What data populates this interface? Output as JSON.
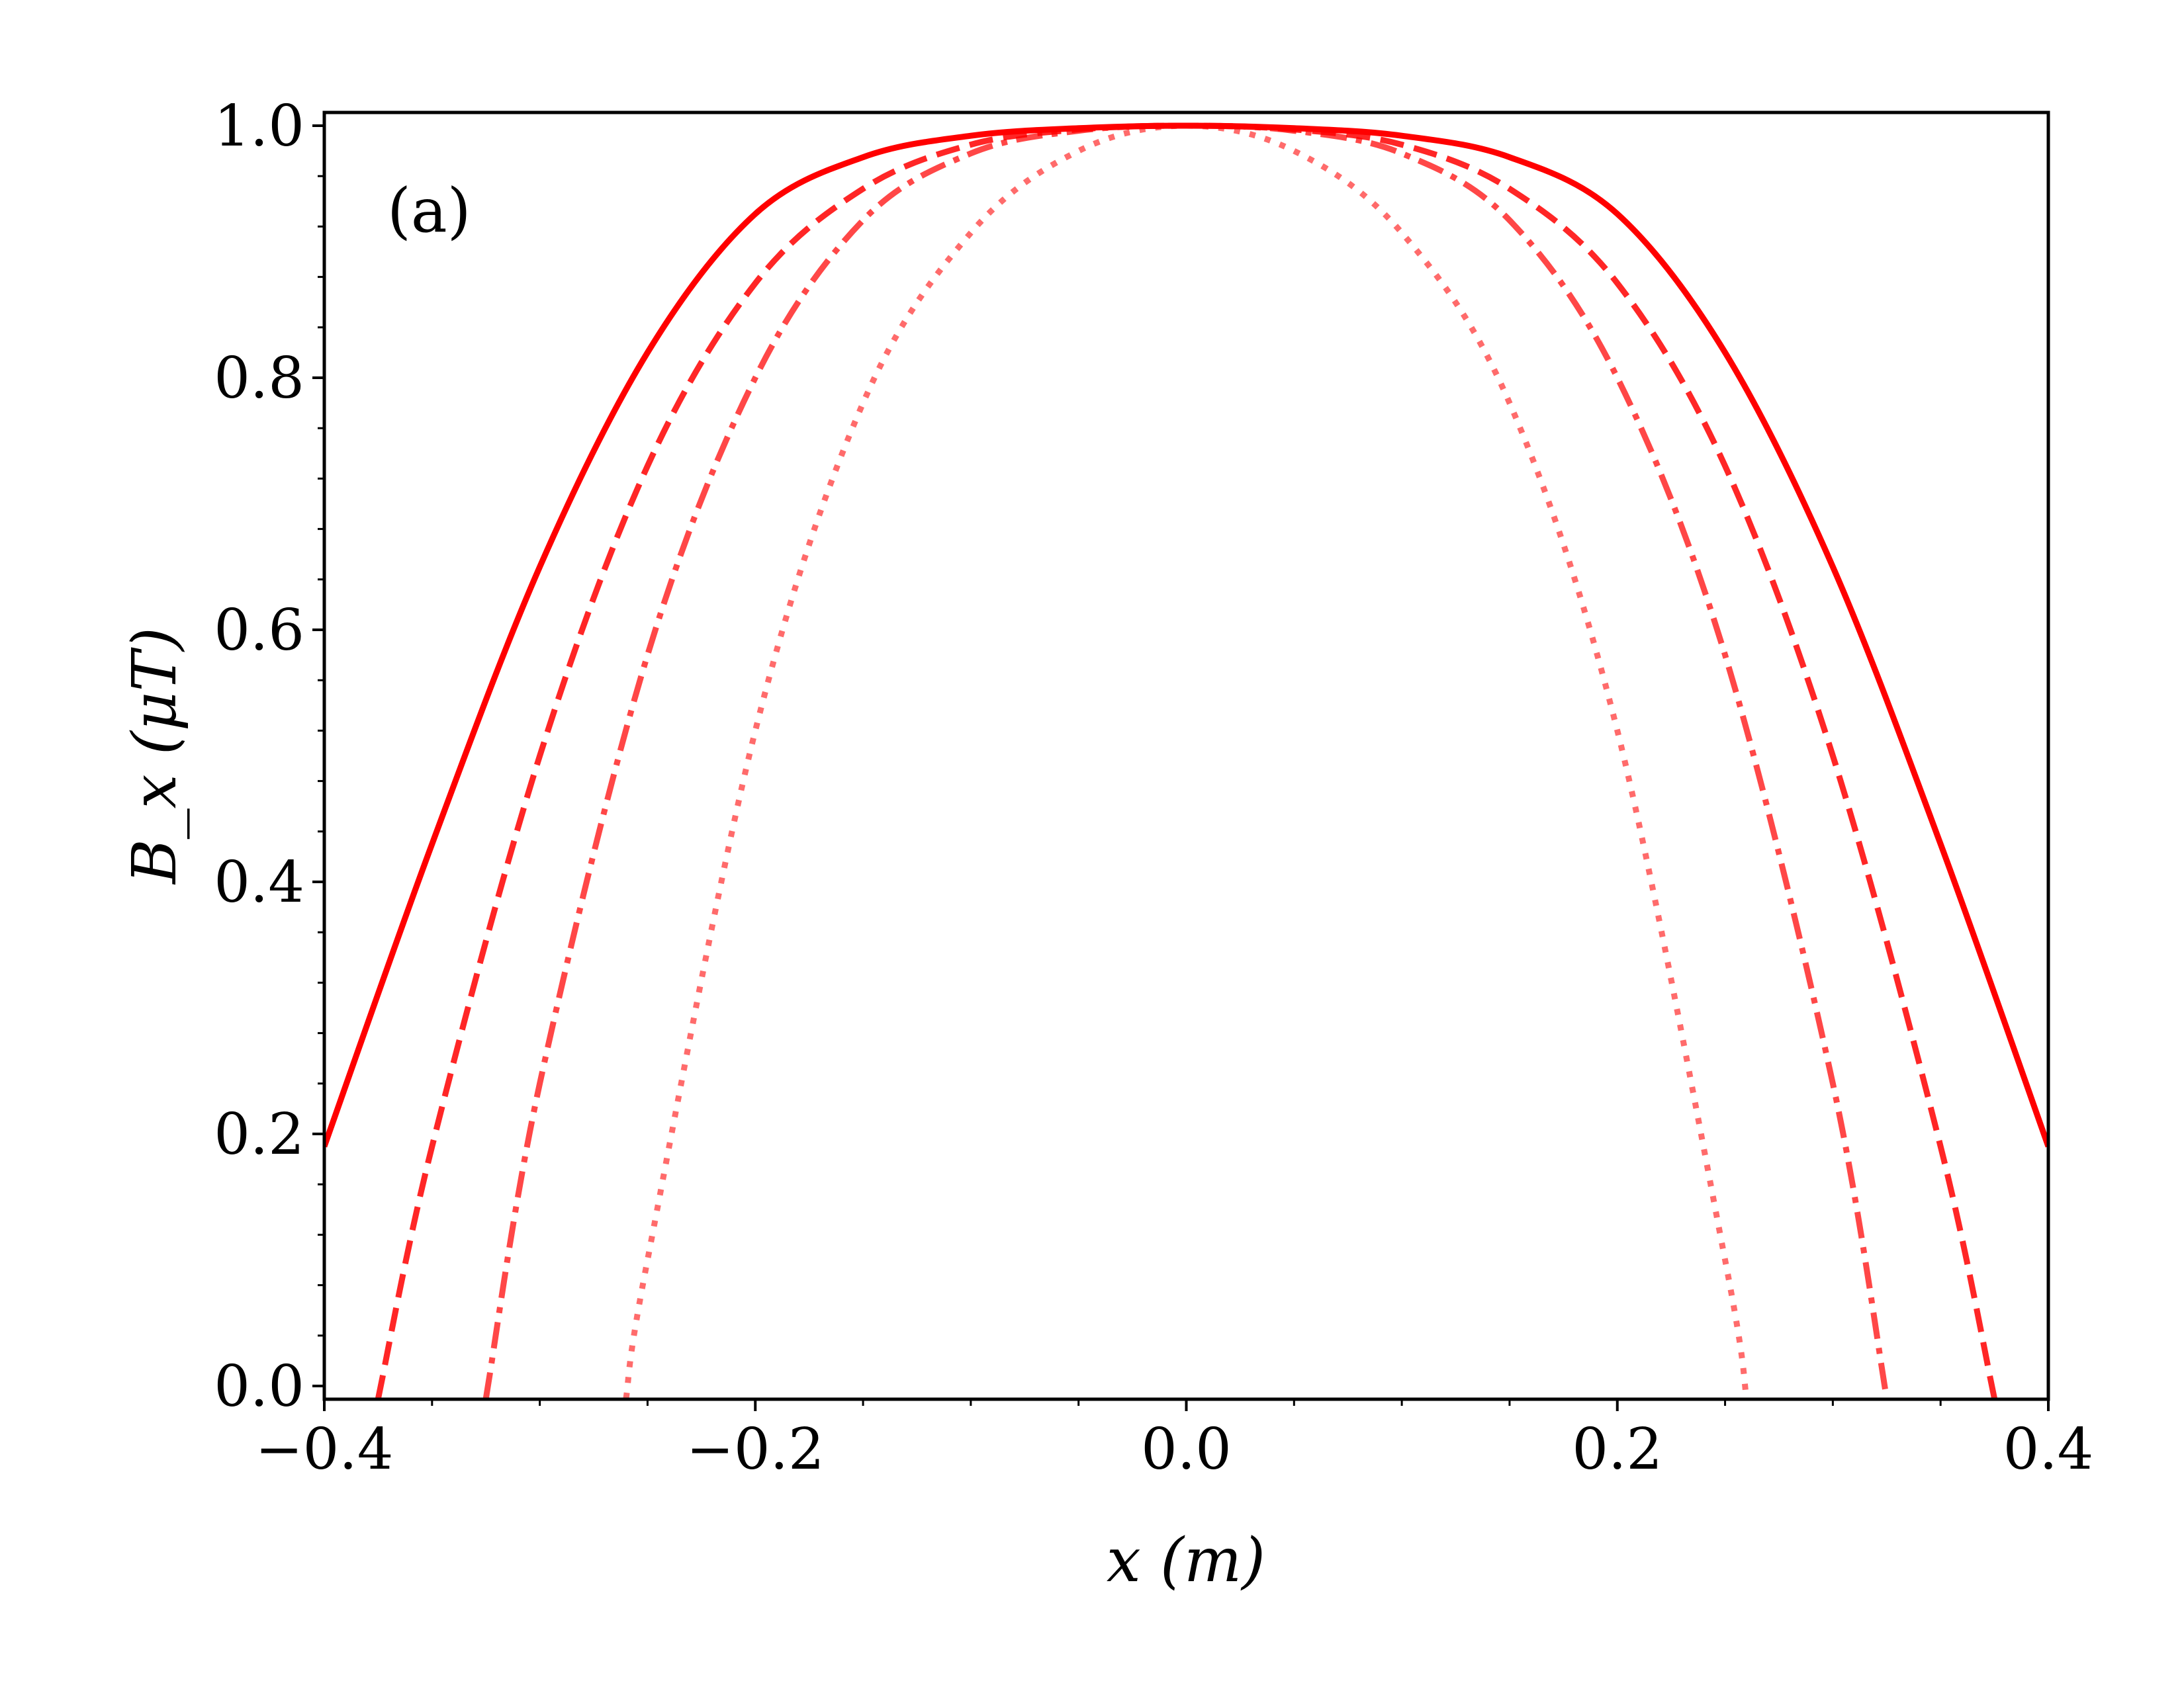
{
  "chart_data": {
    "type": "line",
    "panel_label": "(a)",
    "xlabel": "x (m)",
    "ylabel": "B_x (μT)",
    "xlim": [
      -0.4,
      0.4
    ],
    "ylim": [
      -0.01,
      1.0
    ],
    "xticks": [
      {
        "value": -0.4,
        "label": "−0.4"
      },
      {
        "value": -0.2,
        "label": "−0.2"
      },
      {
        "value": 0.0,
        "label": "0.0"
      },
      {
        "value": 0.2,
        "label": "0.2"
      },
      {
        "value": 0.4,
        "label": "0.4"
      }
    ],
    "yticks": [
      {
        "value": 0.0,
        "label": "0.0"
      },
      {
        "value": 0.2,
        "label": "0.2"
      },
      {
        "value": 0.4,
        "label": "0.4"
      },
      {
        "value": 0.6,
        "label": "0.6"
      },
      {
        "value": 0.8,
        "label": "0.8"
      },
      {
        "value": 1.0,
        "label": "1.0"
      }
    ],
    "grid": false,
    "series": [
      {
        "style": "solid",
        "color": "#ff0000",
        "opacity": 1.0,
        "x": [
          -0.4,
          -0.35,
          -0.3,
          -0.25,
          -0.2,
          -0.15,
          -0.1,
          -0.05,
          0.0,
          0.05,
          0.1,
          0.15,
          0.2,
          0.25,
          0.3,
          0.35,
          0.4
        ],
        "y": [
          0.19,
          0.43,
          0.65,
          0.82,
          0.93,
          0.975,
          0.992,
          0.998,
          1.0,
          0.998,
          0.992,
          0.975,
          0.93,
          0.82,
          0.65,
          0.43,
          0.19
        ]
      },
      {
        "style": "dashed",
        "color": "#ff0000",
        "opacity": 0.85,
        "x": [
          -0.375,
          -0.35,
          -0.3,
          -0.25,
          -0.2,
          -0.15,
          -0.1,
          -0.05,
          0.0,
          0.05,
          0.1,
          0.15,
          0.2,
          0.25,
          0.3,
          0.35,
          0.375
        ],
        "y": [
          -0.01,
          0.19,
          0.5,
          0.73,
          0.875,
          0.95,
          0.985,
          0.997,
          1.0,
          0.997,
          0.985,
          0.95,
          0.875,
          0.73,
          0.5,
          0.19,
          -0.01
        ]
      },
      {
        "style": "dashdot",
        "color": "#ff0000",
        "opacity": 0.72,
        "x": [
          -0.325,
          -0.3,
          -0.25,
          -0.2,
          -0.15,
          -0.1,
          -0.05,
          0.0,
          0.05,
          0.1,
          0.15,
          0.2,
          0.25,
          0.3,
          0.325
        ],
        "y": [
          -0.01,
          0.24,
          0.58,
          0.8,
          0.925,
          0.978,
          0.996,
          1.0,
          0.996,
          0.978,
          0.925,
          0.8,
          0.58,
          0.24,
          -0.01
        ]
      },
      {
        "style": "dotted",
        "color": "#ff0000",
        "opacity": 0.58,
        "x": [
          -0.26,
          -0.25,
          -0.2,
          -0.15,
          -0.1,
          -0.05,
          0.0,
          0.05,
          0.1,
          0.15,
          0.2,
          0.25,
          0.26
        ],
        "y": [
          -0.01,
          0.1,
          0.52,
          0.78,
          0.915,
          0.98,
          1.0,
          0.98,
          0.915,
          0.78,
          0.52,
          0.1,
          -0.01
        ]
      }
    ]
  }
}
